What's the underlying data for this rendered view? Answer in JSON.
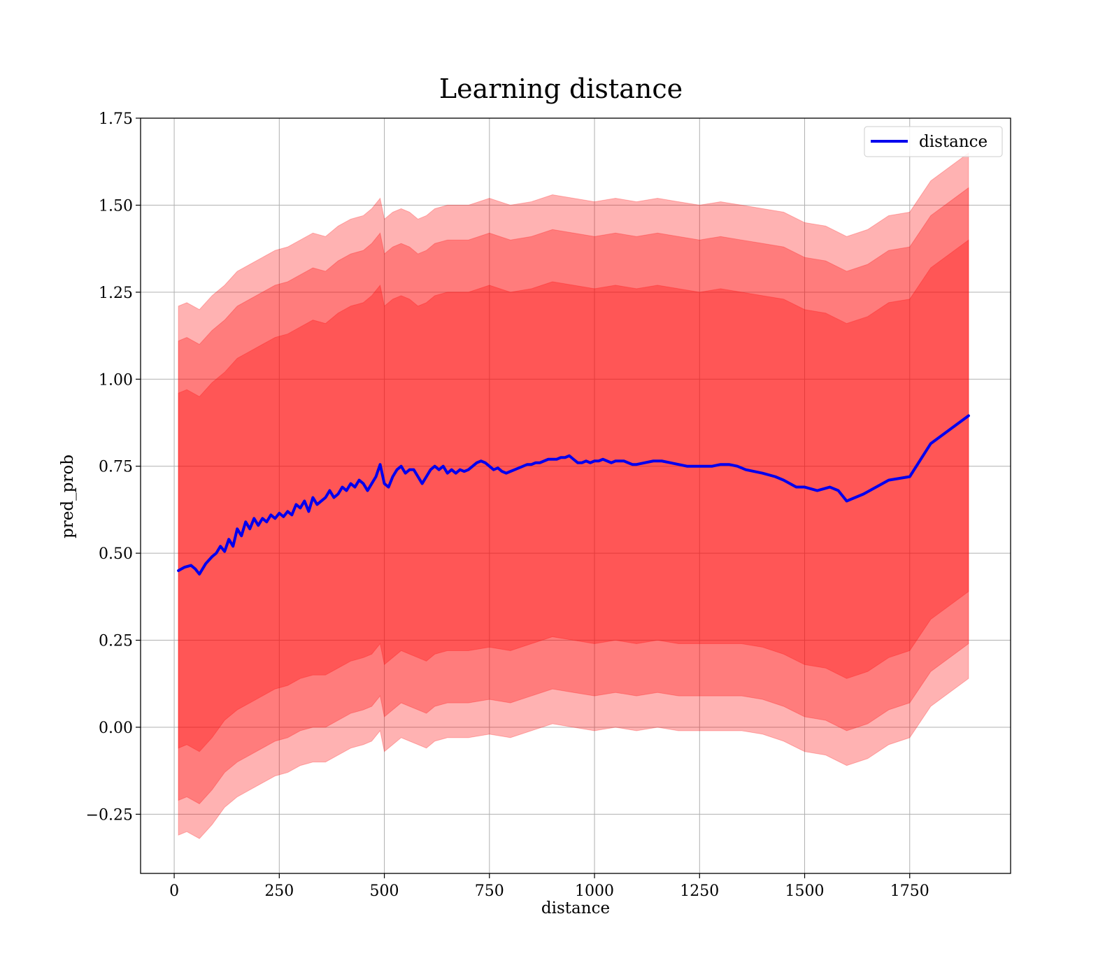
{
  "chart_data": {
    "type": "line",
    "title": "Learning distance",
    "xlabel": "distance",
    "ylabel": "pred_prob",
    "xlim": [
      -80,
      1990
    ],
    "ylim": [
      -0.42,
      1.75
    ],
    "xticks": [
      0,
      250,
      500,
      750,
      1000,
      1250,
      1500,
      1750
    ],
    "yticks": [
      -0.25,
      0.0,
      0.25,
      0.5,
      0.75,
      1.0,
      1.25,
      1.5,
      1.75
    ],
    "ytick_labels": [
      "−0.25",
      "0.00",
      "0.25",
      "0.50",
      "0.75",
      "1.00",
      "1.25",
      "1.50",
      "1.75"
    ],
    "grid": true,
    "legend": {
      "position": "top-right",
      "entries": [
        "distance"
      ]
    },
    "colors": {
      "line": "#0000ee",
      "band": "#ff0000",
      "band_opacity": 0.3
    },
    "series": [
      {
        "name": "distance",
        "x": [
          10,
          25,
          40,
          50,
          60,
          75,
          90,
          100,
          110,
          120,
          130,
          140,
          150,
          160,
          170,
          180,
          190,
          200,
          210,
          220,
          230,
          240,
          250,
          260,
          270,
          280,
          290,
          300,
          310,
          320,
          330,
          340,
          350,
          360,
          370,
          380,
          390,
          400,
          410,
          420,
          430,
          440,
          450,
          460,
          470,
          480,
          490,
          500,
          510,
          520,
          530,
          540,
          550,
          560,
          570,
          580,
          590,
          600,
          610,
          620,
          630,
          640,
          650,
          660,
          670,
          680,
          690,
          700,
          710,
          720,
          730,
          740,
          750,
          760,
          770,
          780,
          790,
          800,
          810,
          820,
          830,
          840,
          850,
          860,
          870,
          880,
          890,
          900,
          910,
          920,
          930,
          940,
          950,
          960,
          970,
          980,
          990,
          1000,
          1010,
          1020,
          1030,
          1040,
          1050,
          1060,
          1070,
          1080,
          1090,
          1100,
          1120,
          1140,
          1160,
          1180,
          1200,
          1220,
          1240,
          1260,
          1280,
          1300,
          1320,
          1340,
          1360,
          1380,
          1400,
          1430,
          1450,
          1480,
          1500,
          1530,
          1560,
          1580,
          1600,
          1640,
          1700,
          1750,
          1800,
          1890
        ],
        "y": [
          0.45,
          0.46,
          0.465,
          0.455,
          0.44,
          0.47,
          0.49,
          0.5,
          0.52,
          0.505,
          0.54,
          0.52,
          0.57,
          0.55,
          0.59,
          0.57,
          0.6,
          0.58,
          0.6,
          0.59,
          0.61,
          0.6,
          0.615,
          0.605,
          0.62,
          0.61,
          0.64,
          0.63,
          0.65,
          0.62,
          0.66,
          0.64,
          0.65,
          0.66,
          0.68,
          0.66,
          0.67,
          0.69,
          0.68,
          0.7,
          0.69,
          0.71,
          0.7,
          0.68,
          0.7,
          0.72,
          0.755,
          0.7,
          0.69,
          0.72,
          0.74,
          0.75,
          0.73,
          0.74,
          0.74,
          0.72,
          0.7,
          0.72,
          0.74,
          0.75,
          0.74,
          0.75,
          0.73,
          0.74,
          0.73,
          0.74,
          0.735,
          0.74,
          0.75,
          0.76,
          0.765,
          0.76,
          0.75,
          0.74,
          0.745,
          0.735,
          0.73,
          0.735,
          0.74,
          0.745,
          0.75,
          0.755,
          0.755,
          0.76,
          0.76,
          0.765,
          0.77,
          0.77,
          0.77,
          0.775,
          0.775,
          0.78,
          0.77,
          0.76,
          0.76,
          0.765,
          0.76,
          0.765,
          0.765,
          0.77,
          0.765,
          0.76,
          0.765,
          0.765,
          0.765,
          0.76,
          0.755,
          0.755,
          0.76,
          0.765,
          0.765,
          0.76,
          0.755,
          0.75,
          0.75,
          0.75,
          0.75,
          0.755,
          0.755,
          0.75,
          0.74,
          0.735,
          0.73,
          0.72,
          0.71,
          0.69,
          0.69,
          0.68,
          0.69,
          0.68,
          0.65,
          0.67,
          0.71,
          0.72,
          0.815,
          0.895
        ]
      }
    ],
    "bands": [
      {
        "x": [
          10,
          30,
          60,
          90,
          120,
          150,
          180,
          210,
          240,
          270,
          300,
          330,
          360,
          390,
          420,
          450,
          470,
          490,
          500,
          520,
          540,
          560,
          580,
          600,
          620,
          650,
          700,
          750,
          800,
          850,
          900,
          950,
          1000,
          1050,
          1100,
          1150,
          1200,
          1250,
          1300,
          1350,
          1400,
          1450,
          1500,
          1550,
          1600,
          1650,
          1700,
          1750,
          1800,
          1890
        ],
        "upper": [
          1.21,
          1.22,
          1.2,
          1.24,
          1.27,
          1.31,
          1.33,
          1.35,
          1.37,
          1.38,
          1.4,
          1.42,
          1.41,
          1.44,
          1.46,
          1.47,
          1.49,
          1.52,
          1.46,
          1.48,
          1.49,
          1.48,
          1.46,
          1.47,
          1.49,
          1.5,
          1.5,
          1.52,
          1.5,
          1.51,
          1.53,
          1.52,
          1.51,
          1.52,
          1.51,
          1.52,
          1.51,
          1.5,
          1.51,
          1.5,
          1.49,
          1.48,
          1.45,
          1.44,
          1.41,
          1.43,
          1.47,
          1.48,
          1.57,
          1.65
        ],
        "lower": [
          -0.31,
          -0.3,
          -0.32,
          -0.28,
          -0.23,
          -0.2,
          -0.18,
          -0.16,
          -0.14,
          -0.13,
          -0.11,
          -0.1,
          -0.1,
          -0.08,
          -0.06,
          -0.05,
          -0.04,
          -0.01,
          -0.07,
          -0.05,
          -0.03,
          -0.04,
          -0.05,
          -0.06,
          -0.04,
          -0.03,
          -0.03,
          -0.02,
          -0.03,
          -0.01,
          0.01,
          0.0,
          -0.01,
          0.0,
          -0.01,
          0.0,
          -0.01,
          -0.01,
          -0.01,
          -0.01,
          -0.02,
          -0.04,
          -0.07,
          -0.08,
          -0.11,
          -0.09,
          -0.05,
          -0.03,
          0.06,
          0.14
        ]
      },
      {
        "x": [
          10,
          30,
          60,
          90,
          120,
          150,
          180,
          210,
          240,
          270,
          300,
          330,
          360,
          390,
          420,
          450,
          470,
          490,
          500,
          520,
          540,
          560,
          580,
          600,
          620,
          650,
          700,
          750,
          800,
          850,
          900,
          950,
          1000,
          1050,
          1100,
          1150,
          1200,
          1250,
          1300,
          1350,
          1400,
          1450,
          1500,
          1550,
          1600,
          1650,
          1700,
          1750,
          1800,
          1890
        ],
        "upper": [
          1.11,
          1.12,
          1.1,
          1.14,
          1.17,
          1.21,
          1.23,
          1.25,
          1.27,
          1.28,
          1.3,
          1.32,
          1.31,
          1.34,
          1.36,
          1.37,
          1.39,
          1.42,
          1.36,
          1.38,
          1.39,
          1.38,
          1.36,
          1.37,
          1.39,
          1.4,
          1.4,
          1.42,
          1.4,
          1.41,
          1.43,
          1.42,
          1.41,
          1.42,
          1.41,
          1.42,
          1.41,
          1.4,
          1.41,
          1.4,
          1.39,
          1.38,
          1.35,
          1.34,
          1.31,
          1.33,
          1.37,
          1.38,
          1.47,
          1.55
        ],
        "lower": [
          -0.21,
          -0.2,
          -0.22,
          -0.18,
          -0.13,
          -0.1,
          -0.08,
          -0.06,
          -0.04,
          -0.03,
          -0.01,
          0.0,
          0.0,
          0.02,
          0.04,
          0.05,
          0.06,
          0.09,
          0.03,
          0.05,
          0.07,
          0.06,
          0.05,
          0.04,
          0.06,
          0.07,
          0.07,
          0.08,
          0.07,
          0.09,
          0.11,
          0.1,
          0.09,
          0.1,
          0.09,
          0.1,
          0.09,
          0.09,
          0.09,
          0.09,
          0.08,
          0.06,
          0.03,
          0.02,
          -0.01,
          0.01,
          0.05,
          0.07,
          0.16,
          0.24
        ]
      },
      {
        "x": [
          10,
          30,
          60,
          90,
          120,
          150,
          180,
          210,
          240,
          270,
          300,
          330,
          360,
          390,
          420,
          450,
          470,
          490,
          500,
          520,
          540,
          560,
          580,
          600,
          620,
          650,
          700,
          750,
          800,
          850,
          900,
          950,
          1000,
          1050,
          1100,
          1150,
          1200,
          1250,
          1300,
          1350,
          1400,
          1450,
          1500,
          1550,
          1600,
          1650,
          1700,
          1750,
          1800,
          1890
        ],
        "upper": [
          0.96,
          0.97,
          0.95,
          0.99,
          1.02,
          1.06,
          1.08,
          1.1,
          1.12,
          1.13,
          1.15,
          1.17,
          1.16,
          1.19,
          1.21,
          1.22,
          1.24,
          1.27,
          1.21,
          1.23,
          1.24,
          1.23,
          1.21,
          1.22,
          1.24,
          1.25,
          1.25,
          1.27,
          1.25,
          1.26,
          1.28,
          1.27,
          1.26,
          1.27,
          1.26,
          1.27,
          1.26,
          1.25,
          1.26,
          1.25,
          1.24,
          1.23,
          1.2,
          1.19,
          1.16,
          1.18,
          1.22,
          1.23,
          1.32,
          1.4
        ],
        "lower": [
          -0.06,
          -0.05,
          -0.07,
          -0.03,
          0.02,
          0.05,
          0.07,
          0.09,
          0.11,
          0.12,
          0.14,
          0.15,
          0.15,
          0.17,
          0.19,
          0.2,
          0.21,
          0.24,
          0.18,
          0.2,
          0.22,
          0.21,
          0.2,
          0.19,
          0.21,
          0.22,
          0.22,
          0.23,
          0.22,
          0.24,
          0.26,
          0.25,
          0.24,
          0.25,
          0.24,
          0.25,
          0.24,
          0.24,
          0.24,
          0.24,
          0.23,
          0.21,
          0.18,
          0.17,
          0.14,
          0.16,
          0.2,
          0.22,
          0.31,
          0.39
        ]
      }
    ]
  }
}
